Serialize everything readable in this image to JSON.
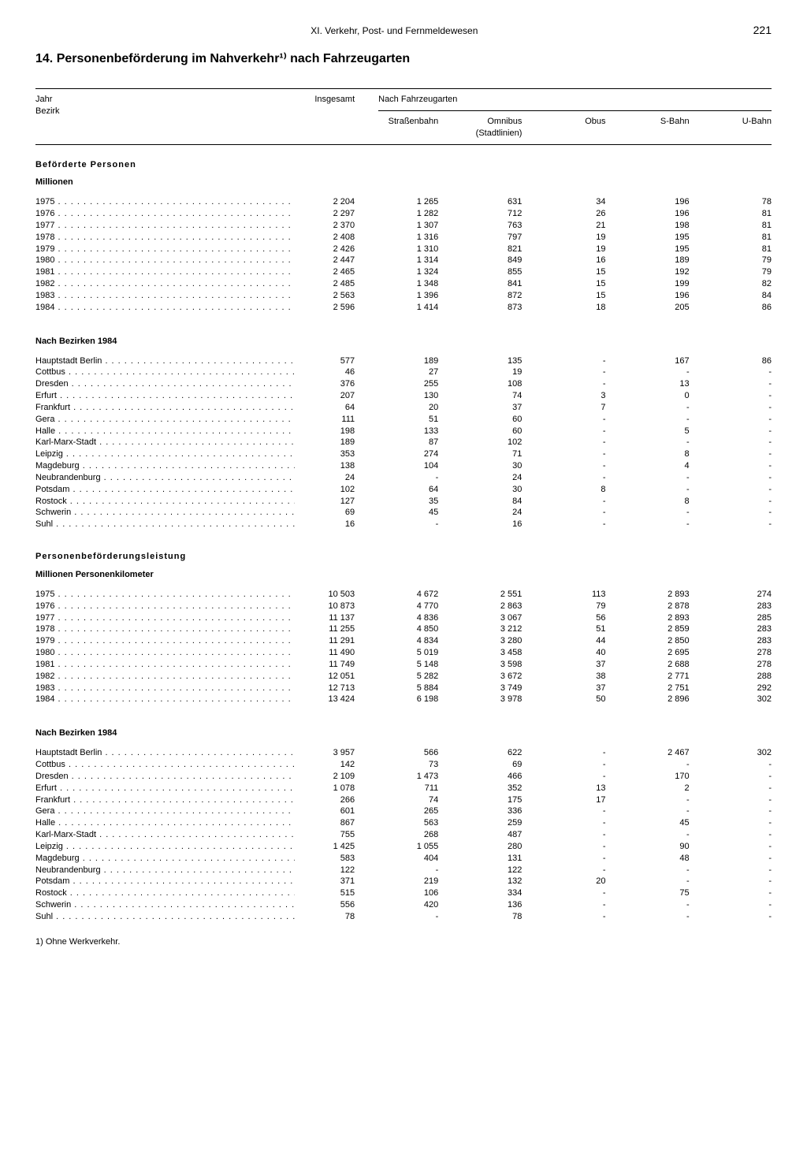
{
  "header": {
    "chapter": "XI. Verkehr, Post- und Fernmeldewesen",
    "page": "221"
  },
  "title": "14. Personenbeförderung im Nahverkehr¹⁾ nach Fahrzeugarten",
  "columns": {
    "label1": "Jahr",
    "label2": "Bezirk",
    "c1": "Insgesamt",
    "group": "Nach Fahrzeugarten",
    "c2": "Straßenbahn",
    "c3": "Omnibus (Stadtlinien)",
    "c4": "Obus",
    "c5": "S-Bahn",
    "c6": "U-Bahn"
  },
  "sections": [
    {
      "heading": "Beförderte Personen",
      "unit": "Millionen",
      "blocks": [
        {
          "rows": [
            {
              "l": "1975",
              "v": [
                "2 204",
                "1 265",
                "631",
                "34",
                "196",
                "78"
              ]
            },
            {
              "l": "1976",
              "v": [
                "2 297",
                "1 282",
                "712",
                "26",
                "196",
                "81"
              ]
            },
            {
              "l": "1977",
              "v": [
                "2 370",
                "1 307",
                "763",
                "21",
                "198",
                "81"
              ]
            },
            {
              "l": "1978",
              "v": [
                "2 408",
                "1 316",
                "797",
                "19",
                "195",
                "81"
              ]
            },
            {
              "l": "1979",
              "v": [
                "2 426",
                "1 310",
                "821",
                "19",
                "195",
                "81"
              ]
            },
            {
              "l": "1980",
              "v": [
                "2 447",
                "1 314",
                "849",
                "16",
                "189",
                "79"
              ]
            },
            {
              "l": "1981",
              "v": [
                "2 465",
                "1 324",
                "855",
                "15",
                "192",
                "79"
              ]
            },
            {
              "l": "1982",
              "v": [
                "2 485",
                "1 348",
                "841",
                "15",
                "199",
                "82"
              ]
            },
            {
              "l": "1983",
              "v": [
                "2 563",
                "1 396",
                "872",
                "15",
                "196",
                "84"
              ]
            },
            {
              "l": "1984",
              "v": [
                "2 596",
                "1 414",
                "873",
                "18",
                "205",
                "86"
              ]
            }
          ]
        },
        {
          "subhead": "Nach Bezirken 1984",
          "rows": [
            {
              "l": "Hauptstadt Berlin",
              "v": [
                "577",
                "189",
                "135",
                "-",
                "167",
                "86"
              ]
            },
            {
              "l": "Cottbus",
              "v": [
                "46",
                "27",
                "19",
                "-",
                "-",
                "-"
              ]
            },
            {
              "l": "Dresden",
              "v": [
                "376",
                "255",
                "108",
                "-",
                "13",
                "-"
              ]
            },
            {
              "l": "Erfurt",
              "v": [
                "207",
                "130",
                "74",
                "3",
                "0",
                "-"
              ]
            },
            {
              "l": "Frankfurt",
              "v": [
                "64",
                "20",
                "37",
                "7",
                "-",
                "-"
              ]
            },
            {
              "l": "Gera",
              "v": [
                "111",
                "51",
                "60",
                "-",
                "-",
                "-"
              ]
            },
            {
              "l": "Halle",
              "v": [
                "198",
                "133",
                "60",
                "-",
                "5",
                "-"
              ]
            },
            {
              "l": "Karl-Marx-Stadt",
              "v": [
                "189",
                "87",
                "102",
                "-",
                "-",
                "-"
              ]
            },
            {
              "l": "Leipzig",
              "v": [
                "353",
                "274",
                "71",
                "-",
                "8",
                "-"
              ]
            },
            {
              "l": "Magdeburg",
              "v": [
                "138",
                "104",
                "30",
                "-",
                "4",
                "-"
              ]
            },
            {
              "l": "Neubrandenburg",
              "v": [
                "24",
                "-",
                "24",
                "-",
                "-",
                "-"
              ]
            },
            {
              "l": "Potsdam",
              "v": [
                "102",
                "64",
                "30",
                "8",
                "-",
                "-"
              ]
            },
            {
              "l": "Rostock",
              "v": [
                "127",
                "35",
                "84",
                "-",
                "8",
                "-"
              ]
            },
            {
              "l": "Schwerin",
              "v": [
                "69",
                "45",
                "24",
                "-",
                "-",
                "-"
              ]
            },
            {
              "l": "Suhl",
              "v": [
                "16",
                "-",
                "16",
                "-",
                "-",
                "-"
              ]
            }
          ]
        }
      ]
    },
    {
      "heading": "Personenbeförderungsleistung",
      "unit": "Millionen Personenkilometer",
      "blocks": [
        {
          "rows": [
            {
              "l": "1975",
              "v": [
                "10 503",
                "4 672",
                "2 551",
                "113",
                "2 893",
                "274"
              ]
            },
            {
              "l": "1976",
              "v": [
                "10 873",
                "4 770",
                "2 863",
                "79",
                "2 878",
                "283"
              ]
            },
            {
              "l": "1977",
              "v": [
                "11 137",
                "4 836",
                "3 067",
                "56",
                "2 893",
                "285"
              ]
            },
            {
              "l": "1978",
              "v": [
                "11 255",
                "4 850",
                "3 212",
                "51",
                "2 859",
                "283"
              ]
            },
            {
              "l": "1979",
              "v": [
                "11 291",
                "4 834",
                "3 280",
                "44",
                "2 850",
                "283"
              ]
            },
            {
              "l": "1980",
              "v": [
                "11 490",
                "5 019",
                "3 458",
                "40",
                "2 695",
                "278"
              ]
            },
            {
              "l": "1981",
              "v": [
                "11 749",
                "5 148",
                "3 598",
                "37",
                "2 688",
                "278"
              ]
            },
            {
              "l": "1982",
              "v": [
                "12 051",
                "5 282",
                "3 672",
                "38",
                "2 771",
                "288"
              ]
            },
            {
              "l": "1983",
              "v": [
                "12 713",
                "5 884",
                "3 749",
                "37",
                "2 751",
                "292"
              ]
            },
            {
              "l": "1984",
              "v": [
                "13 424",
                "6 198",
                "3 978",
                "50",
                "2 896",
                "302"
              ]
            }
          ]
        },
        {
          "subhead": "Nach Bezirken 1984",
          "rows": [
            {
              "l": "Hauptstadt Berlin",
              "v": [
                "3 957",
                "566",
                "622",
                "-",
                "2 467",
                "302"
              ]
            },
            {
              "l": "Cottbus",
              "v": [
                "142",
                "73",
                "69",
                "-",
                "-",
                "-"
              ]
            },
            {
              "l": "Dresden",
              "v": [
                "2 109",
                "1 473",
                "466",
                "-",
                "170",
                "-"
              ]
            },
            {
              "l": "Erfurt",
              "v": [
                "1 078",
                "711",
                "352",
                "13",
                "2",
                "-"
              ]
            },
            {
              "l": "Frankfurt",
              "v": [
                "266",
                "74",
                "175",
                "17",
                "-",
                "-"
              ]
            },
            {
              "l": "Gera",
              "v": [
                "601",
                "265",
                "336",
                "-",
                "-",
                "-"
              ]
            },
            {
              "l": "Halle",
              "v": [
                "867",
                "563",
                "259",
                "-",
                "45",
                "-"
              ]
            },
            {
              "l": "Karl-Marx-Stadt",
              "v": [
                "755",
                "268",
                "487",
                "-",
                "-",
                "-"
              ]
            },
            {
              "l": "Leipzig",
              "v": [
                "1 425",
                "1 055",
                "280",
                "-",
                "90",
                "-"
              ]
            },
            {
              "l": "Magdeburg",
              "v": [
                "583",
                "404",
                "131",
                "-",
                "48",
                "-"
              ]
            },
            {
              "l": "Neubrandenburg",
              "v": [
                "122",
                "-",
                "122",
                "-",
                "-",
                "-"
              ]
            },
            {
              "l": "Potsdam",
              "v": [
                "371",
                "219",
                "132",
                "20",
                "-",
                "-"
              ]
            },
            {
              "l": "Rostock",
              "v": [
                "515",
                "106",
                "334",
                "-",
                "75",
                "-"
              ]
            },
            {
              "l": "Schwerin",
              "v": [
                "556",
                "420",
                "136",
                "-",
                "-",
                "-"
              ]
            },
            {
              "l": "Suhl",
              "v": [
                "78",
                "-",
                "78",
                "-",
                "-",
                "-"
              ]
            }
          ]
        }
      ]
    }
  ],
  "footnote": "1) Ohne Werkverkehr."
}
